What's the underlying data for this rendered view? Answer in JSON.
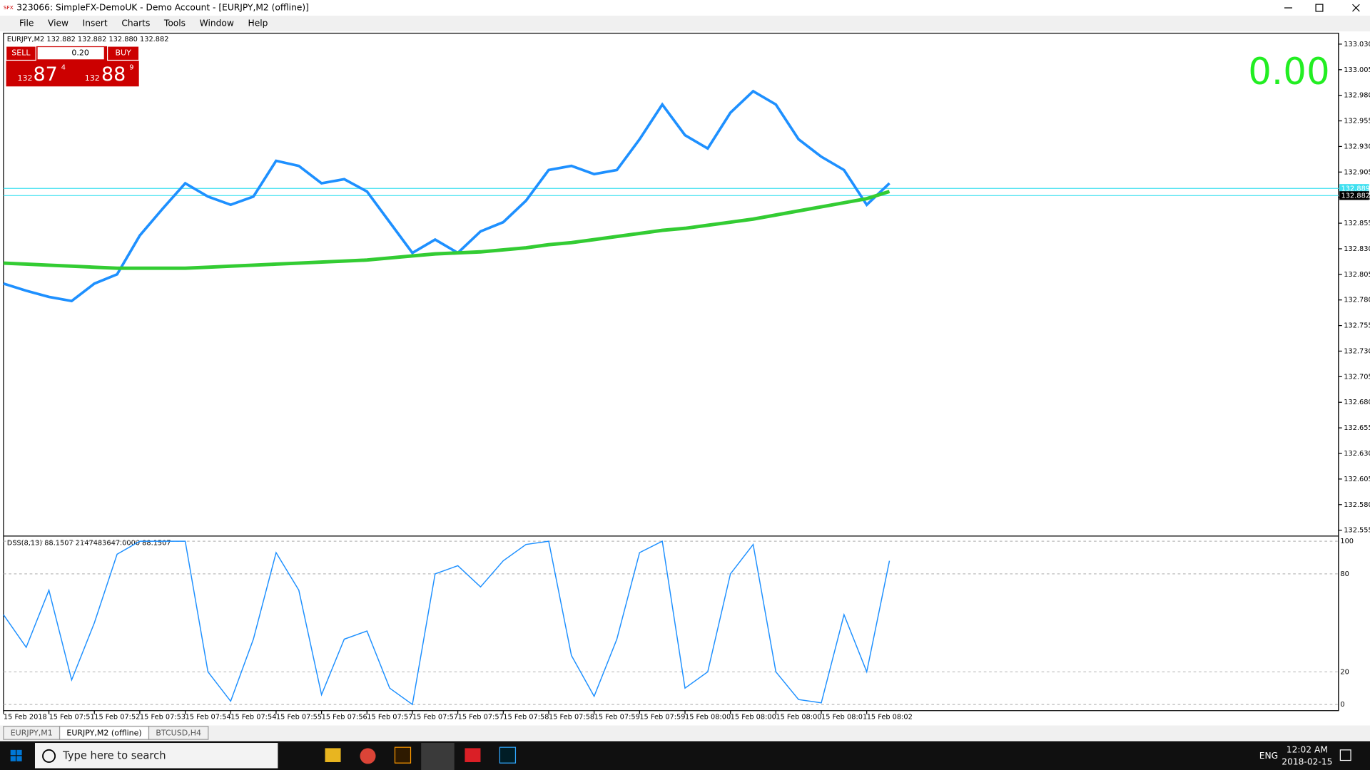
{
  "window": {
    "title": "323066: SimpleFX-DemoUK - Demo Account - [EURJPY,M2 (offline)]",
    "menu": [
      "File",
      "View",
      "Insert",
      "Charts",
      "Tools",
      "Window",
      "Help"
    ]
  },
  "trade_panel": {
    "sell": "SELL",
    "lot": "0.20",
    "buy": "BUY",
    "bid_big": "132",
    "bid_main": "87",
    "bid_small": "4",
    "ask_big": "132",
    "ask_main": "88",
    "ask_small": "9"
  },
  "profit": "0.00",
  "chart_data": [
    {
      "type": "line",
      "title": "EURJPY,M2  132.882 132.882 132.880 132.882",
      "series": [
        {
          "color": "#1e90ff",
          "values": [
            132.796,
            132.789,
            132.783,
            132.779,
            132.796,
            132.805,
            132.843,
            132.869,
            132.894,
            132.881,
            132.873,
            132.881,
            132.916,
            132.911,
            132.894,
            132.898,
            132.886,
            132.856,
            132.826,
            132.839,
            132.826,
            132.847,
            132.856,
            132.877,
            132.907,
            132.911,
            132.903,
            132.907,
            132.937,
            132.971,
            132.941,
            132.928,
            132.963,
            132.984,
            132.971,
            132.937,
            132.92,
            132.907,
            132.873,
            132.894
          ]
        },
        {
          "color": "#33cc33",
          "values": [
            132.816,
            132.815,
            132.814,
            132.813,
            132.812,
            132.811,
            132.811,
            132.811,
            132.811,
            132.812,
            132.813,
            132.814,
            132.815,
            132.816,
            132.817,
            132.818,
            132.819,
            132.821,
            132.823,
            132.825,
            132.826,
            132.827,
            132.829,
            132.831,
            132.834,
            132.836,
            132.839,
            132.842,
            132.845,
            132.848,
            132.85,
            132.853,
            132.856,
            132.859,
            132.863,
            132.867,
            132.871,
            132.875,
            132.879,
            132.886
          ]
        }
      ],
      "ylim": [
        132.551,
        133.039
      ],
      "yticks": [
        {
          "value": 133.03,
          "label": "133.030"
        },
        {
          "value": 133.005,
          "label": "133.005"
        },
        {
          "value": 132.98,
          "label": "132.980"
        },
        {
          "value": 132.955,
          "label": "132.955"
        },
        {
          "value": 132.93,
          "label": "132.930"
        },
        {
          "value": 132.905,
          "label": "132.905"
        },
        {
          "value": 132.88,
          "label": "132.880"
        },
        {
          "value": 132.855,
          "label": "132.855"
        },
        {
          "value": 132.83,
          "label": "132.830"
        },
        {
          "value": 132.805,
          "label": "132.805"
        },
        {
          "value": 132.78,
          "label": "132.780"
        },
        {
          "value": 132.755,
          "label": "132.755"
        },
        {
          "value": 132.73,
          "label": "132.730"
        },
        {
          "value": 132.705,
          "label": "132.705"
        },
        {
          "value": 132.68,
          "label": "132.680"
        },
        {
          "value": 132.655,
          "label": "132.655"
        },
        {
          "value": 132.63,
          "label": "132.630"
        },
        {
          "value": 132.605,
          "label": "132.605"
        },
        {
          "value": 132.58,
          "label": "132.580"
        },
        {
          "value": 132.555,
          "label": "132.555"
        }
      ],
      "hlines": [
        {
          "value": 132.889,
          "label": "132.889"
        },
        {
          "value": 132.882,
          "label": "132.882"
        }
      ]
    },
    {
      "type": "line",
      "title": "DSS(8,13) 88.1507 2147483647.0000 88.1507",
      "categories": [
        "15 Feb 2018",
        null,
        "15 Feb 07:51",
        null,
        "15 Feb 07:52",
        null,
        "15 Feb 07:53",
        null,
        "15 Feb 07:54",
        null,
        "15 Feb 07:54",
        null,
        "15 Feb 07:55",
        null,
        "15 Feb 07:56",
        null,
        "15 Feb 07:57",
        null,
        "15 Feb 07:57",
        null,
        "15 Feb 07:57",
        null,
        "15 Feb 07:58",
        null,
        "15 Feb 07:58",
        null,
        "15 Feb 07:59",
        null,
        "15 Feb 07:59",
        null,
        "15 Feb 08:00",
        null,
        "15 Feb 08:00",
        null,
        "15 Feb 08:00",
        null,
        "15 Feb 08:01",
        null,
        "15 Feb 08:02",
        null
      ],
      "series": [
        {
          "color": "#1e90ff",
          "values": [
            55,
            35,
            70,
            15,
            50,
            92,
            100,
            100,
            100,
            20,
            2,
            40,
            93,
            70,
            6,
            40,
            45,
            10,
            0,
            80,
            85,
            72,
            88,
            98,
            100,
            30,
            5,
            40,
            93,
            100,
            10,
            20,
            80,
            98,
            20,
            3,
            1,
            55,
            20,
            88
          ]
        }
      ],
      "ylim": [
        -2.7,
        102.1
      ],
      "yticks": [
        0,
        20,
        80,
        100
      ],
      "grid": true
    }
  ],
  "tabs": [
    "EURJPY,M1",
    "EURJPY,M2 (offline)",
    "BTCUSD,H4"
  ],
  "taskbar": {
    "search": "Type here to search",
    "lang": "ENG",
    "time": "12:02 AM",
    "date": "2018-02-15"
  }
}
